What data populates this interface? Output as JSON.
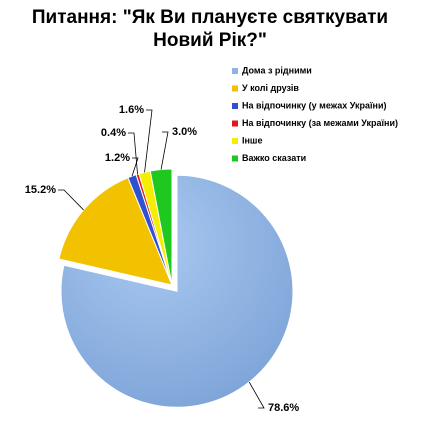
{
  "chart_data": {
    "type": "pie",
    "title": "Питання: \"Як Ви плануєте святкувати Новий Рік?\"",
    "series": [
      {
        "name": "Дома з рідними",
        "color": "#8fb4e3",
        "values": [
          78.6
        ],
        "value_labels": [
          "78.6%"
        ]
      },
      {
        "name": "У колі друзів",
        "color": "#f2c200",
        "values": [
          15.2
        ],
        "value_labels": [
          "15.2%"
        ]
      },
      {
        "name": "На відпочинку (у межах України)",
        "color": "#3050d0",
        "values": [
          1.2
        ],
        "value_labels": [
          "1.2%"
        ]
      },
      {
        "name": "На відпочинку (за межами України)",
        "color": "#e01818",
        "values": [
          0.4
        ],
        "value_labels": [
          "0.4%"
        ]
      },
      {
        "name": "Інше",
        "color": "#f5ee00",
        "values": [
          1.6
        ],
        "value_labels": [
          "1.6%"
        ]
      },
      {
        "name": "Важко сказати",
        "color": "#1ec81e",
        "values": [
          3.0
        ],
        "value_labels": [
          "3.0%"
        ]
      }
    ]
  }
}
